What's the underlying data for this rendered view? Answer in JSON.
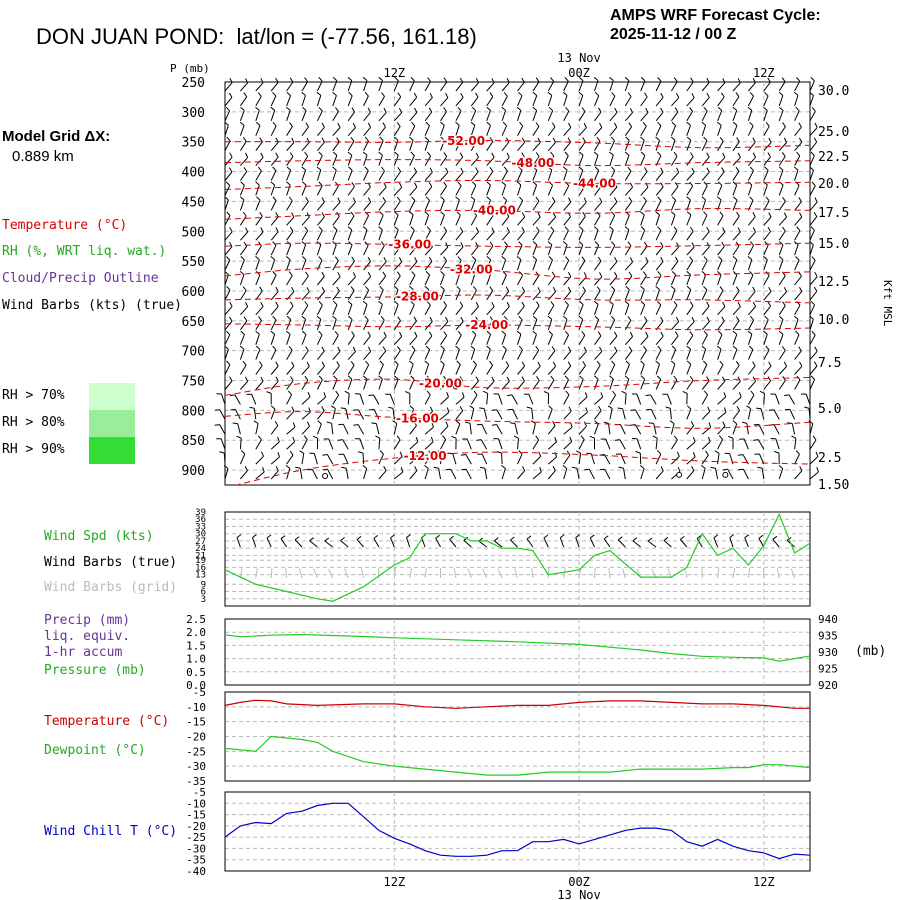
{
  "header": {
    "station": "DON JUAN POND:",
    "latlon": "lat/lon = (-77.56, 161.18)",
    "cycle_line1": "AMPS WRF Forecast Cycle:",
    "cycle_line2": "2025-11-12 / 00  Z"
  },
  "grid": {
    "label": "Model Grid ΔX:",
    "value": "0.889 km"
  },
  "legend": {
    "temperature": "Temperature (°C)",
    "rh": "RH (%, WRT liq. wat.)",
    "cloud": "Cloud/Precip Outline",
    "barbs": "Wind Barbs (kts) (true)",
    "rh_levels": [
      {
        "label": "RH > 70%",
        "color": "#ccffcc"
      },
      {
        "label": "RH > 80%",
        "color": "#99ee99"
      },
      {
        "label": "RH > 90%",
        "color": "#33dd33"
      }
    ]
  },
  "colors": {
    "temp": "#dd0000",
    "rh": "#22aa22",
    "cloud": "#663399",
    "green": "#22cc22",
    "red": "#cc0000",
    "blue": "#0000cc",
    "grid_barb": "#bbbbbb"
  },
  "time_axis": {
    "ticks": [
      {
        "x": 12,
        "label": "12Z"
      },
      {
        "x": 24,
        "label": "00Z"
      },
      {
        "x": 36,
        "label": "12Z"
      }
    ],
    "date_label": "13 Nov",
    "range": [
      1,
      39
    ]
  },
  "chart_data": [
    {
      "type": "line",
      "title": "DON JUAN POND:  lat/lon = (-77.56, 161.18)",
      "ylabel": "P (mb)",
      "ylabel_right": "Kft MSL",
      "pressure_ticks": [
        250,
        300,
        350,
        400,
        450,
        500,
        550,
        600,
        650,
        700,
        750,
        800,
        850,
        900
      ],
      "height_ticks": [
        "30.0",
        "25.0",
        "22.5",
        "20.0",
        "17.5",
        "15.0",
        "12.5",
        "10.0",
        "7.5",
        "5.0",
        "2.5",
        "1.50"
      ],
      "isotherms": [
        {
          "label": "-52.00",
          "label_x": 16.5,
          "points": [
            [
              1,
              350
            ],
            [
              6,
              350
            ],
            [
              12,
              351
            ],
            [
              18,
              348
            ],
            [
              25,
              352
            ],
            [
              32,
              360
            ],
            [
              39,
              356
            ]
          ]
        },
        {
          "label": "-48.00",
          "label_x": 21,
          "points": [
            [
              1,
              385
            ],
            [
              6,
              382
            ],
            [
              12,
              380
            ],
            [
              18,
              382
            ],
            [
              25,
              390
            ],
            [
              32,
              385
            ],
            [
              39,
              382
            ]
          ]
        },
        {
          "label": "-44.00",
          "label_x": 25,
          "points": [
            [
              1,
              430
            ],
            [
              6,
              425
            ],
            [
              12,
              418
            ],
            [
              18,
              415
            ],
            [
              25,
              420
            ],
            [
              32,
              420
            ],
            [
              39,
              418
            ]
          ]
        },
        {
          "label": "-40.00",
          "label_x": 18.5,
          "points": [
            [
              1,
              480
            ],
            [
              6,
              474
            ],
            [
              12,
              467
            ],
            [
              18,
              465
            ],
            [
              25,
              470
            ],
            [
              32,
              462
            ],
            [
              39,
              465
            ]
          ]
        },
        {
          "label": "-36.00",
          "label_x": 13,
          "points": [
            [
              1,
              525
            ],
            [
              6,
              520
            ],
            [
              12,
              522
            ],
            [
              18,
              525
            ],
            [
              25,
              527
            ],
            [
              32,
              524
            ],
            [
              39,
              520
            ]
          ]
        },
        {
          "label": "-32.00",
          "label_x": 17,
          "points": [
            [
              1,
              575
            ],
            [
              6,
              563
            ],
            [
              12,
              558
            ],
            [
              18,
              565
            ],
            [
              25,
              580
            ],
            [
              32,
              573
            ],
            [
              39,
              568
            ]
          ]
        },
        {
          "label": "-28.00",
          "label_x": 13.5,
          "points": [
            [
              1,
              615
            ],
            [
              6,
              612
            ],
            [
              12,
              610
            ],
            [
              18,
              607
            ],
            [
              25,
              615
            ],
            [
              32,
              615
            ],
            [
              39,
              620
            ]
          ]
        },
        {
          "label": "-24.00",
          "label_x": 18,
          "points": [
            [
              1,
              655
            ],
            [
              6,
              657
            ],
            [
              12,
              660
            ],
            [
              18,
              657
            ],
            [
              25,
              660
            ],
            [
              32,
              665
            ],
            [
              39,
              662
            ]
          ]
        },
        {
          "label": "-20.00",
          "label_x": 15,
          "points": [
            [
              1,
              775
            ],
            [
              6,
              755
            ],
            [
              12,
              748
            ],
            [
              18,
              762
            ],
            [
              25,
              760
            ],
            [
              32,
              750
            ],
            [
              39,
              745
            ]
          ]
        },
        {
          "label": "-16.00",
          "label_x": 13.5,
          "points": [
            [
              1,
              810
            ],
            [
              6,
              802
            ],
            [
              12,
              812
            ],
            [
              18,
              818
            ],
            [
              25,
              822
            ],
            [
              32,
              830
            ],
            [
              39,
              820
            ]
          ]
        },
        {
          "label": "-12.00",
          "label_x": 14,
          "points": [
            [
              1,
              930
            ],
            [
              6,
              900
            ],
            [
              12,
              880
            ],
            [
              18,
              870
            ],
            [
              25,
              875
            ],
            [
              32,
              885
            ],
            [
              39,
              890
            ]
          ]
        }
      ]
    },
    {
      "type": "line",
      "title": "Wind Spd (kts)",
      "labels": [
        "Wind Spd (kts)",
        "Wind Barbs (true)",
        "Wind Barbs (grid)"
      ],
      "yticks": [
        3,
        6,
        9,
        13,
        16,
        19,
        21,
        24,
        27,
        30,
        33,
        36,
        39
      ],
      "ylim": [
        0,
        39
      ],
      "series": [
        {
          "values": [
            [
              1,
              15
            ],
            [
              3,
              9
            ],
            [
              5,
              6
            ],
            [
              7,
              3
            ],
            [
              8,
              2
            ],
            [
              10,
              8
            ],
            [
              12,
              17
            ],
            [
              13,
              20
            ],
            [
              14,
              30
            ],
            [
              16,
              30
            ],
            [
              17,
              27
            ],
            [
              18,
              27
            ],
            [
              19,
              24
            ],
            [
              20,
              24
            ],
            [
              21,
              23
            ],
            [
              22,
              13
            ],
            [
              24,
              15
            ],
            [
              25,
              21
            ],
            [
              26,
              23
            ],
            [
              28,
              12
            ],
            [
              30,
              12
            ],
            [
              31,
              16
            ],
            [
              32,
              30
            ],
            [
              33,
              21
            ],
            [
              34,
              24
            ],
            [
              35,
              17
            ],
            [
              36,
              25
            ],
            [
              37,
              38
            ],
            [
              38,
              22
            ],
            [
              39,
              26
            ]
          ]
        }
      ]
    },
    {
      "type": "line",
      "labels": [
        "Precip (mm)",
        "liq. equiv.",
        "1-hr accum",
        "Pressure (mb)"
      ],
      "yticks_left": [
        "0.0",
        "0.5",
        "1.0",
        "1.5",
        "2.0",
        "2.5"
      ],
      "yticks_right": [
        "920",
        "925",
        "930",
        "935",
        "940"
      ],
      "ylabel_right": "(mb)",
      "ylim": [
        920,
        940
      ],
      "series": [
        {
          "values": [
            [
              1,
              935.2
            ],
            [
              2,
              934.6
            ],
            [
              4,
              935.1
            ],
            [
              6,
              935.3
            ],
            [
              8,
              935.0
            ],
            [
              10,
              934.7
            ],
            [
              12,
              934.3
            ],
            [
              16,
              933.7
            ],
            [
              20,
              933.1
            ],
            [
              24,
              932.3
            ],
            [
              28,
              930.6
            ],
            [
              30,
              929.5
            ],
            [
              32,
              928.7
            ],
            [
              34,
              928.4
            ],
            [
              36,
              928.2
            ],
            [
              37,
              927.2
            ],
            [
              39,
              928.8
            ]
          ]
        }
      ]
    },
    {
      "type": "line",
      "labels": [
        "Temperature (°C)",
        "Dewpoint (°C)"
      ],
      "yticks": [
        -5,
        -10,
        -15,
        -20,
        -25,
        -30,
        -35
      ],
      "ylim": [
        -35,
        -5
      ],
      "series": [
        {
          "name": "Temperature (°C)",
          "values": [
            [
              1,
              -9.5
            ],
            [
              2,
              -8.5
            ],
            [
              3,
              -7.8
            ],
            [
              4,
              -8.0
            ],
            [
              5,
              -9.0
            ],
            [
              7,
              -9.5
            ],
            [
              10,
              -9.0
            ],
            [
              12,
              -9.0
            ],
            [
              14,
              -10.0
            ],
            [
              16,
              -10.5
            ],
            [
              18,
              -10.0
            ],
            [
              20,
              -9.5
            ],
            [
              22,
              -9.5
            ],
            [
              24,
              -8.5
            ],
            [
              26,
              -8.0
            ],
            [
              28,
              -8.0
            ],
            [
              30,
              -8.5
            ],
            [
              32,
              -9.0
            ],
            [
              34,
              -9.0
            ],
            [
              36,
              -9.5
            ],
            [
              38,
              -10.5
            ],
            [
              39,
              -10.5
            ]
          ]
        },
        {
          "name": "Dewpoint (°C)",
          "values": [
            [
              1,
              -24
            ],
            [
              3,
              -25
            ],
            [
              4,
              -20
            ],
            [
              6,
              -21
            ],
            [
              7,
              -22
            ],
            [
              8,
              -25
            ],
            [
              10,
              -28.5
            ],
            [
              12,
              -30
            ],
            [
              14,
              -31
            ],
            [
              16,
              -32
            ],
            [
              18,
              -33
            ],
            [
              20,
              -33
            ],
            [
              22,
              -32
            ],
            [
              24,
              -32
            ],
            [
              26,
              -32
            ],
            [
              28,
              -31
            ],
            [
              30,
              -31
            ],
            [
              32,
              -31
            ],
            [
              34,
              -30.5
            ],
            [
              35,
              -30.5
            ],
            [
              36,
              -29.5
            ],
            [
              37,
              -29.5
            ],
            [
              39,
              -30.5
            ]
          ]
        }
      ]
    },
    {
      "type": "line",
      "labels": [
        "Wind Chill T (°C)"
      ],
      "yticks": [
        -5,
        -10,
        -15,
        -20,
        -25,
        -30,
        -35,
        -40
      ],
      "ylim": [
        -40,
        -5
      ],
      "series": [
        {
          "name": "Wind Chill T (°C)",
          "values": [
            [
              1,
              -25
            ],
            [
              2,
              -20
            ],
            [
              3,
              -18.5
            ],
            [
              4,
              -19
            ],
            [
              5,
              -14.5
            ],
            [
              6,
              -13.5
            ],
            [
              7,
              -11
            ],
            [
              8,
              -10
            ],
            [
              9,
              -10
            ],
            [
              10,
              -16
            ],
            [
              11,
              -22
            ],
            [
              12,
              -25.5
            ],
            [
              13,
              -28
            ],
            [
              14,
              -31
            ],
            [
              15,
              -33
            ],
            [
              16,
              -33.5
            ],
            [
              17,
              -33.5
            ],
            [
              18,
              -33
            ],
            [
              19,
              -31
            ],
            [
              20,
              -31
            ],
            [
              21,
              -27
            ],
            [
              22,
              -27
            ],
            [
              23,
              -26
            ],
            [
              24,
              -28
            ],
            [
              25,
              -26
            ],
            [
              26,
              -24
            ],
            [
              27,
              -22
            ],
            [
              28,
              -21
            ],
            [
              29,
              -21
            ],
            [
              30,
              -22
            ],
            [
              31,
              -27
            ],
            [
              32,
              -29
            ],
            [
              33,
              -26
            ],
            [
              34,
              -29
            ],
            [
              35,
              -31
            ],
            [
              36,
              -32
            ],
            [
              37,
              -34.5
            ],
            [
              38,
              -32.5
            ],
            [
              39,
              -33
            ]
          ]
        }
      ]
    }
  ]
}
